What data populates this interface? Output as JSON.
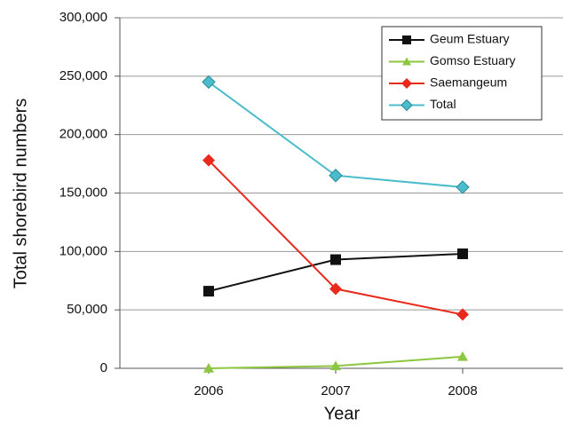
{
  "chart_data": {
    "type": "line",
    "ylabel": "Total shorebird numbers",
    "xlabel": "Year",
    "categories": [
      "2006",
      "2007",
      "2008"
    ],
    "series": [
      {
        "name": "Geum Estuary",
        "color": "#111111",
        "marker": "square",
        "values": [
          66000,
          93000,
          98000
        ]
      },
      {
        "name": "Gomso Estuary",
        "color": "#8dc63f",
        "marker": "triangle",
        "values": [
          0,
          2000,
          10000
        ]
      },
      {
        "name": "Saemangeum",
        "color": "#e8291c",
        "marker": "diamond",
        "values": [
          178000,
          68000,
          46000
        ]
      },
      {
        "name": "Total",
        "color": "#4bbccb",
        "marker": "diamond",
        "values": [
          245000,
          165000,
          155000
        ]
      }
    ],
    "ylim": [
      0,
      300000
    ],
    "yticks": [
      0,
      {
        "value": 50000,
        "label": "50,000"
      },
      {
        "value": 100000,
        "label": "100,000"
      },
      {
        "value": 150000,
        "label": "150,000"
      },
      {
        "value": 200000,
        "label": "200,000"
      },
      {
        "value": 250000,
        "label": "250,000"
      },
      {
        "value": 300000,
        "label": "300,000"
      }
    ],
    "grid": true,
    "legend": "upper right"
  }
}
